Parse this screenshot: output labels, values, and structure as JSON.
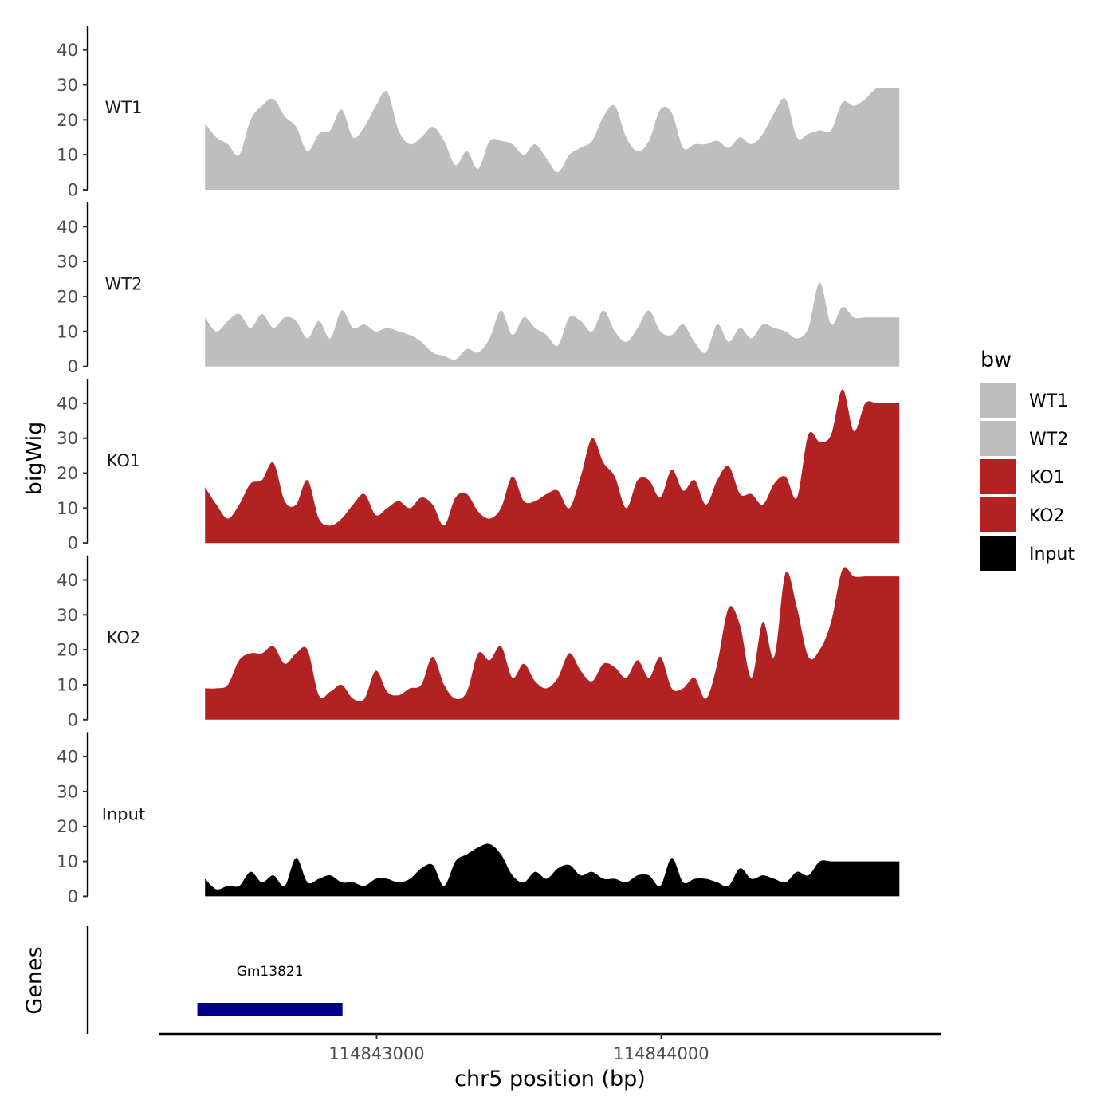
{
  "chart_data": {
    "type": "area",
    "ylabel": "bigWig",
    "xlabel": "chr5 position (bp)",
    "genes_label": "Genes",
    "xlim": [
      114842250,
      114845000
    ],
    "ylim": [
      0,
      47
    ],
    "y_ticks": [
      0,
      10,
      20,
      30,
      40
    ],
    "x_ticks": [
      114843000,
      114844000
    ],
    "x_tick_labels": [
      "114843000",
      "114844000"
    ],
    "legend": {
      "title": "bw",
      "position": "right",
      "entries": [
        {
          "label": "WT1",
          "color": "#bebebe"
        },
        {
          "label": "WT2",
          "color": "#bebebe"
        },
        {
          "label": "KO1",
          "color": "#b22222"
        },
        {
          "label": "KO2",
          "color": "#b22222"
        },
        {
          "label": "Input",
          "color": "#000000"
        }
      ]
    },
    "x": [
      114842397,
      114842437,
      114842477,
      114842517,
      114842557,
      114842597,
      114842637,
      114842677,
      114842717,
      114842757,
      114842797,
      114842837,
      114842877,
      114842917,
      114842957,
      114842997,
      114843037,
      114843077,
      114843117,
      114843157,
      114843197,
      114843237,
      114843277,
      114843317,
      114843357,
      114843397,
      114843437,
      114843477,
      114843517,
      114843557,
      114843597,
      114843637,
      114843677,
      114843717,
      114843757,
      114843797,
      114843837,
      114843877,
      114843917,
      114843957,
      114843997,
      114844037,
      114844077,
      114844117,
      114844157,
      114844197,
      114844237,
      114844277,
      114844317,
      114844357,
      114844397,
      114844437,
      114844477,
      114844517,
      114844557,
      114844597,
      114844637,
      114844677,
      114844717,
      114844757,
      114844797,
      114844837
    ],
    "series": [
      {
        "name": "WT1",
        "color": "#bebebe",
        "values": [
          19,
          15,
          13,
          10,
          20,
          24,
          26,
          21,
          18,
          11,
          16,
          17,
          23,
          15,
          18,
          24,
          28,
          17,
          13,
          15,
          18,
          14,
          7,
          11,
          6,
          14,
          14,
          13,
          10,
          13,
          9,
          5,
          10,
          12,
          14,
          21,
          24,
          15,
          11,
          14,
          23,
          22,
          12,
          13,
          13,
          14,
          12,
          15,
          13,
          16,
          22,
          26,
          15,
          16,
          17,
          17,
          25,
          24,
          26,
          29,
          29,
          29
        ]
      },
      {
        "name": "WT2",
        "color": "#bebebe",
        "values": [
          14,
          10,
          13,
          15,
          11,
          15,
          11,
          14,
          13,
          8,
          13,
          8,
          16,
          11,
          12,
          10,
          11,
          10,
          9,
          7,
          4,
          3,
          2,
          5,
          4,
          8,
          16,
          9,
          14,
          11,
          9,
          6,
          14,
          13,
          10,
          16,
          10,
          7,
          11,
          16,
          10,
          9,
          12,
          7,
          4,
          12,
          7,
          11,
          8,
          12,
          11,
          10,
          8,
          11,
          24,
          12,
          17,
          14,
          14,
          14,
          14,
          14
        ]
      },
      {
        "name": "KO1",
        "color": "#b22222",
        "values": [
          16,
          11,
          7,
          11,
          17,
          18,
          23,
          12,
          11,
          18,
          7,
          5,
          7,
          11,
          14,
          8,
          10,
          12,
          10,
          13,
          11,
          5,
          13,
          14,
          9,
          7,
          10,
          19,
          12,
          12,
          14,
          15,
          10,
          19,
          30,
          23,
          19,
          10,
          18,
          18,
          13,
          21,
          15,
          18,
          11,
          18,
          22,
          14,
          14,
          11,
          17,
          19,
          13,
          31,
          29,
          31,
          44,
          32,
          40,
          40,
          40,
          40
        ]
      },
      {
        "name": "KO2",
        "color": "#b22222",
        "values": [
          9,
          9,
          10,
          17,
          19,
          19,
          21,
          16,
          19,
          20,
          7,
          8,
          10,
          6,
          6,
          14,
          8,
          7,
          9,
          10,
          18,
          10,
          6,
          8,
          19,
          17,
          21,
          12,
          16,
          11,
          9,
          12,
          19,
          14,
          11,
          16,
          15,
          12,
          17,
          12,
          18,
          9,
          9,
          12,
          6,
          16,
          32,
          27,
          12,
          28,
          18,
          42,
          32,
          18,
          20,
          28,
          43,
          41,
          41,
          41,
          41,
          41
        ]
      },
      {
        "name": "Input",
        "color": "#000000",
        "values": [
          5,
          2,
          3,
          3,
          7,
          4,
          6,
          3,
          11,
          4,
          5,
          6,
          4,
          4,
          3,
          5,
          5,
          4,
          5,
          8,
          9,
          3,
          10,
          12,
          14,
          15,
          12,
          6,
          4,
          7,
          5,
          8,
          9,
          6,
          7,
          5,
          5,
          4,
          6,
          6,
          3,
          11,
          4,
          5,
          5,
          4,
          3,
          8,
          5,
          6,
          5,
          4,
          7,
          6,
          10,
          10,
          10,
          10,
          10,
          10,
          10,
          10
        ]
      }
    ],
    "genes": [
      {
        "name": "Gm13821",
        "start": 114842370,
        "end": 114842880,
        "color": "#00008b"
      }
    ]
  }
}
